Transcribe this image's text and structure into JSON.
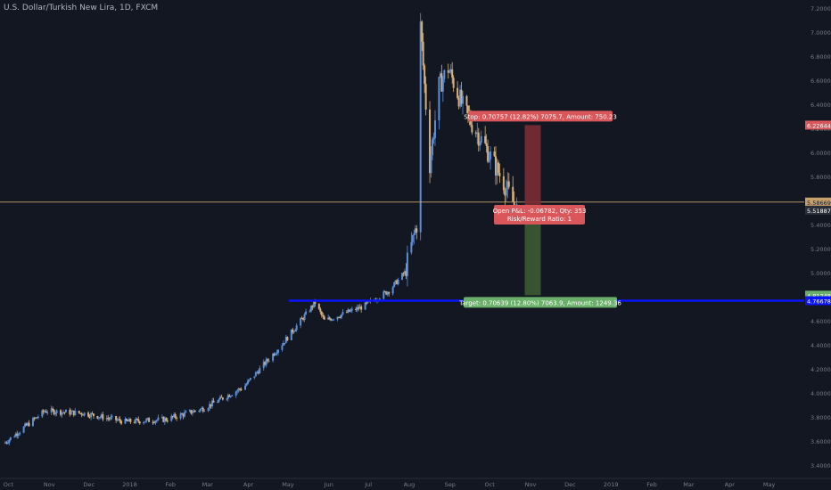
{
  "header": {
    "symbol_title": "U.S. Dollar/Turkish New Lira, 1D, FXCM"
  },
  "colors": {
    "background": "#131722",
    "candle_up": "#5b8ed8",
    "candle_down": "#d6b07c",
    "support_line": "#0a14ff",
    "stop_zone": "#7a2e33",
    "target_zone": "#3d5a32",
    "stop_label_bg": "#d9575b",
    "target_label_bg": "#6bb06a",
    "price_line": "#c8a06b"
  },
  "chart_data": {
    "type": "candlestick",
    "title": "U.S. Dollar/Turkish New Lira, 1D, FXCM",
    "x_ticks": [
      "Oct",
      "Nov",
      "Dec",
      "2018",
      "Feb",
      "Mar",
      "Apr",
      "May",
      "Jun",
      "Jul",
      "Aug",
      "Sep",
      "Oct",
      "Nov",
      "Dec",
      "2019",
      "Feb",
      "Mar",
      "Apr",
      "May"
    ],
    "y_ticks": [
      "7.20000",
      "7.00000",
      "6.80000",
      "6.60000",
      "6.40000",
      "6.20000",
      "6.00000",
      "5.80000",
      "5.60000",
      "5.40000",
      "5.20000",
      "5.00000",
      "4.80000",
      "4.60000",
      "4.40000",
      "4.20000",
      "4.00000",
      "3.80000",
      "3.60000",
      "3.40000"
    ],
    "y_range": [
      3.36,
      7.22
    ],
    "x_range": [
      "2017-09-28",
      "2019-05-31"
    ],
    "grid": false,
    "price_series": {
      "dates": [
        "2017-10-01",
        "2017-11-01",
        "2017-12-01",
        "2018-01-01",
        "2018-02-01",
        "2018-03-01",
        "2018-04-01",
        "2018-05-01",
        "2018-05-25",
        "2018-06-01",
        "2018-07-01",
        "2018-07-20",
        "2018-08-01",
        "2018-08-10",
        "2018-08-13",
        "2018-08-20",
        "2018-08-27",
        "2018-09-03",
        "2018-09-15",
        "2018-10-01",
        "2018-10-15",
        "2018-10-25"
      ],
      "closes": [
        3.58,
        3.85,
        3.83,
        3.76,
        3.78,
        3.87,
        4.05,
        4.42,
        4.75,
        4.6,
        4.72,
        4.85,
        5.0,
        5.4,
        7.05,
        5.9,
        6.55,
        6.7,
        6.35,
        6.05,
        5.75,
        5.52
      ]
    },
    "support_level": 4.76678,
    "last_price": 5.58669,
    "position": {
      "entry": 5.51887,
      "stop": 6.22644,
      "target": 4.81248
    },
    "price_labels": [
      {
        "text": "6.22644",
        "value": 6.22644,
        "kind": "stop"
      },
      {
        "text": "5.58669",
        "value": 5.58669,
        "kind": "last"
      },
      {
        "text": "5.51887",
        "value": 5.51887,
        "kind": "entry"
      },
      {
        "text": "4.81248",
        "value": 4.81248,
        "kind": "target"
      },
      {
        "text": "4.76678",
        "value": 4.76678,
        "kind": "support"
      }
    ],
    "annotations": {
      "stop_label": "Stop: 0.70757 (12.82%) 7075.7, Amount: 750.23",
      "pnl_line1": "Open P&L: -0.06782, Qty: 353",
      "pnl_line2": "Risk/Reward Ratio: 1",
      "target_label": "Target: 0.70639 (12.80%) 7063.9, Amount: 1249.36"
    }
  }
}
